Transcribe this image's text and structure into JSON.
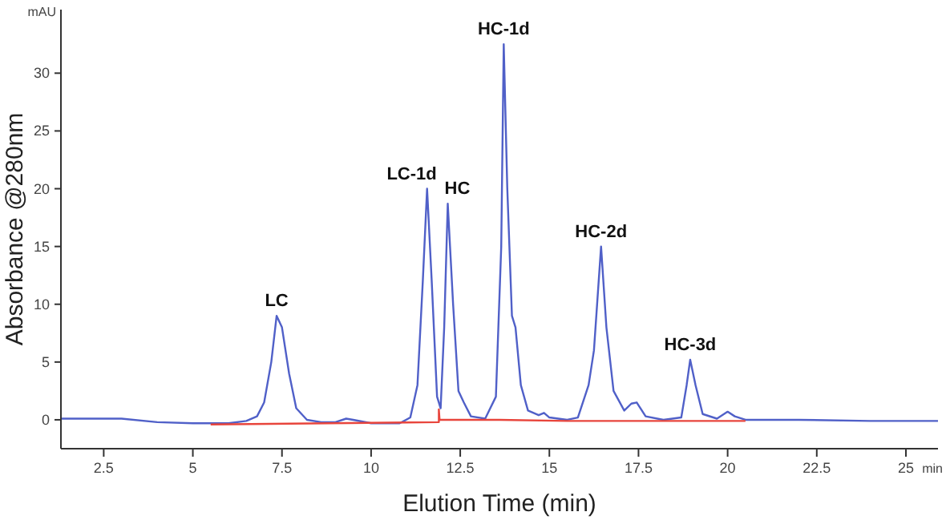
{
  "chart_data": {
    "type": "line",
    "xlabel": "Elution Time (min)",
    "ylabel": "Absorbance @280nm",
    "xlim": [
      1.3,
      25.9
    ],
    "xticks": [
      {
        "value": 2.5,
        "label": "2.5"
      },
      5,
      {
        "value": 7.5,
        "label": "7.5"
      },
      10,
      {
        "value": 12.5,
        "label": "12.5"
      },
      15,
      {
        "value": 17.5,
        "label": "17.5"
      },
      20,
      {
        "value": 22.5,
        "label": "22.5"
      },
      25
    ],
    "ylim": [
      -2.5,
      35.5
    ],
    "yticks": [
      0,
      5,
      10,
      15,
      20,
      25,
      30
    ],
    "grid": false,
    "marker": "none",
    "line_style": "solid",
    "series": [
      {
        "color": "#5060c8",
        "x": [
          1.3,
          3,
          4,
          5,
          6,
          6.5,
          6.8,
          7.0,
          7.2,
          7.35,
          7.5,
          7.7,
          7.9,
          8.2,
          8.6,
          9.0,
          9.3,
          9.5,
          10,
          10.8,
          11.1,
          11.3,
          11.45,
          11.57,
          11.7,
          11.85,
          11.95,
          12.05,
          12.15,
          12.3,
          12.45,
          12.6,
          12.8,
          13.2,
          13.5,
          13.65,
          13.72,
          13.82,
          13.95,
          14.05,
          14.2,
          14.4,
          14.7,
          14.85,
          15.0,
          15.5,
          15.8,
          16.1,
          16.25,
          16.45,
          16.6,
          16.8,
          17.1,
          17.3,
          17.45,
          17.7,
          18.2,
          18.7,
          18.85,
          18.95,
          19.1,
          19.3,
          19.7,
          20.0,
          20.2,
          20.5,
          22,
          24,
          25.9
        ],
        "values": [
          0.1,
          0.1,
          -0.2,
          -0.3,
          -0.3,
          -0.1,
          0.3,
          1.5,
          5,
          9,
          8,
          4,
          1,
          0,
          -0.2,
          -0.2,
          0.1,
          0,
          -0.3,
          -0.3,
          0.2,
          3,
          12,
          20,
          12,
          2,
          1,
          8,
          18.7,
          10,
          2.5,
          1.5,
          0.3,
          0.1,
          2,
          15,
          32.5,
          20,
          9,
          8,
          3,
          0.8,
          0.4,
          0.6,
          0.2,
          0,
          0.2,
          3,
          6,
          15,
          8,
          2.5,
          0.8,
          1.4,
          1.5,
          0.3,
          0,
          0.2,
          3,
          5.2,
          3,
          0.5,
          0.1,
          0.7,
          0.3,
          0,
          0,
          -0.1,
          -0.1
        ]
      },
      {
        "color": "#e8453c",
        "x": [
          5.5,
          11.9,
          11.9,
          11.92,
          13.6,
          15.5,
          17.5,
          20.5
        ],
        "values": [
          -0.4,
          -0.2,
          0.9,
          0,
          0,
          -0.1,
          -0.1,
          -0.1
        ]
      }
    ],
    "annotations": [
      "mAU",
      "min",
      {
        "text": "LC",
        "x": 7.35,
        "y": 9
      },
      {
        "text": "LC-1d",
        "x": 11.57,
        "y": 20
      },
      {
        "text": "HC",
        "x": 12.15,
        "y": 18.7
      },
      {
        "text": "HC-1d",
        "x": 13.72,
        "y": 32.5
      },
      {
        "text": "HC-2d",
        "x": 16.45,
        "y": 15
      },
      {
        "text": "HC-3d",
        "x": 18.95,
        "y": 5.2
      }
    ]
  }
}
